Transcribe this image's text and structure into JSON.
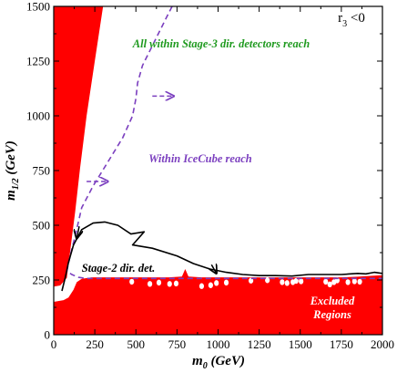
{
  "chart_data": {
    "type": "line",
    "title": "",
    "xlabel": {
      "main": "m",
      "sub": "0",
      "unit": " (GeV)"
    },
    "ylabel": {
      "main": "m",
      "sub": "1/2",
      "unit": " (GeV)"
    },
    "xlim": [
      0,
      2000
    ],
    "ylim": [
      0,
      1500
    ],
    "xticks": [
      0,
      250,
      500,
      750,
      1000,
      1250,
      1500,
      1750,
      2000
    ],
    "yticks": [
      0,
      250,
      500,
      750,
      1000,
      1250,
      1500
    ],
    "grid": false,
    "colors": {
      "excluded": "#ff0000",
      "icecube": "#7b3fbf",
      "stage3": "#1f9a1f",
      "stage2": "#000000"
    },
    "condition": {
      "main": "r",
      "sub": "3",
      "rest": " <0"
    },
    "annotations": {
      "stage3": "All within Stage-3 dir. detectors reach",
      "icecube": "Within IceCube reach",
      "stage2": "Stage-2 dir. det.",
      "excluded_line1": "Excluded",
      "excluded_line2": "Regions"
    },
    "excluded_left": [
      [
        0,
        1500
      ],
      [
        0,
        220
      ],
      [
        40,
        225
      ],
      [
        80,
        260
      ],
      [
        100,
        380
      ],
      [
        130,
        560
      ],
      [
        160,
        760
      ],
      [
        200,
        1000
      ],
      [
        250,
        1250
      ],
      [
        300,
        1500
      ]
    ],
    "excluded_bottom": [
      [
        0,
        0
      ],
      [
        0,
        150
      ],
      [
        60,
        158
      ],
      [
        90,
        170
      ],
      [
        120,
        205
      ],
      [
        140,
        240
      ],
      [
        170,
        255
      ],
      [
        230,
        262
      ],
      [
        330,
        262
      ],
      [
        500,
        262
      ],
      [
        700,
        262
      ],
      [
        780,
        266
      ],
      [
        800,
        300
      ],
      [
        820,
        266
      ],
      [
        900,
        262
      ],
      [
        1000,
        262
      ],
      [
        1200,
        262
      ],
      [
        1500,
        262
      ],
      [
        1750,
        262
      ],
      [
        1850,
        265
      ],
      [
        1950,
        270
      ],
      [
        2000,
        272
      ],
      [
        2000,
        0
      ]
    ],
    "excluded_holes": [
      [
        475,
        242
      ],
      [
        585,
        232
      ],
      [
        640,
        238
      ],
      [
        705,
        232
      ],
      [
        745,
        234
      ],
      [
        900,
        222
      ],
      [
        955,
        226
      ],
      [
        990,
        236
      ],
      [
        1050,
        238
      ],
      [
        1200,
        247
      ],
      [
        1300,
        249
      ],
      [
        1390,
        240
      ],
      [
        1420,
        236
      ],
      [
        1455,
        240
      ],
      [
        1475,
        246
      ],
      [
        1505,
        244
      ],
      [
        1655,
        242
      ],
      [
        1680,
        230
      ],
      [
        1705,
        240
      ],
      [
        1725,
        248
      ],
      [
        1790,
        240
      ],
      [
        1830,
        244
      ],
      [
        1862,
        242
      ]
    ],
    "series": [
      {
        "key": "icecube",
        "style": "dashed",
        "points": [
          [
            720,
            1500
          ],
          [
            680,
            1440
          ],
          [
            600,
            1320
          ],
          [
            540,
            1230
          ],
          [
            510,
            1150
          ],
          [
            500,
            1080
          ],
          [
            480,
            1000
          ],
          [
            420,
            900
          ],
          [
            330,
            790
          ],
          [
            240,
            680
          ],
          [
            170,
            580
          ],
          [
            130,
            450
          ],
          [
            100,
            360
          ],
          [
            80,
            290
          ],
          [
            110,
            275
          ],
          [
            150,
            262
          ],
          [
            200,
            257
          ],
          [
            300,
            257
          ],
          [
            500,
            257
          ],
          [
            700,
            257
          ],
          [
            900,
            257
          ],
          [
            1100,
            257
          ],
          [
            1400,
            257
          ],
          [
            1700,
            257
          ],
          [
            2000,
            257
          ]
        ]
      },
      {
        "key": "stage2",
        "style": "solid",
        "points": [
          [
            50,
            200
          ],
          [
            70,
            260
          ],
          [
            90,
            330
          ],
          [
            120,
            410
          ],
          [
            170,
            480
          ],
          [
            240,
            510
          ],
          [
            310,
            515
          ],
          [
            390,
            500
          ],
          [
            470,
            460
          ],
          [
            550,
            470
          ],
          [
            480,
            410
          ],
          [
            600,
            395
          ],
          [
            750,
            360
          ],
          [
            850,
            325
          ],
          [
            950,
            300
          ],
          [
            1050,
            285
          ],
          [
            1150,
            275
          ],
          [
            1250,
            270
          ],
          [
            1350,
            270
          ],
          [
            1450,
            268
          ],
          [
            1550,
            275
          ],
          [
            1650,
            275
          ],
          [
            1750,
            275
          ],
          [
            1850,
            280
          ],
          [
            1900,
            278
          ],
          [
            1950,
            285
          ],
          [
            2000,
            280
          ]
        ]
      }
    ],
    "arrows": [
      {
        "key": "icecube",
        "from": [
          600,
          1090
        ],
        "to": [
          730,
          1090
        ]
      },
      {
        "key": "icecube",
        "from": [
          200,
          700
        ],
        "to": [
          330,
          700
        ]
      },
      {
        "key": "stage2",
        "from": [
          155,
          495
        ],
        "to": [
          140,
          440
        ]
      },
      {
        "key": "stage2",
        "from": [
          960,
          320
        ],
        "to": [
          990,
          280
        ]
      }
    ]
  }
}
